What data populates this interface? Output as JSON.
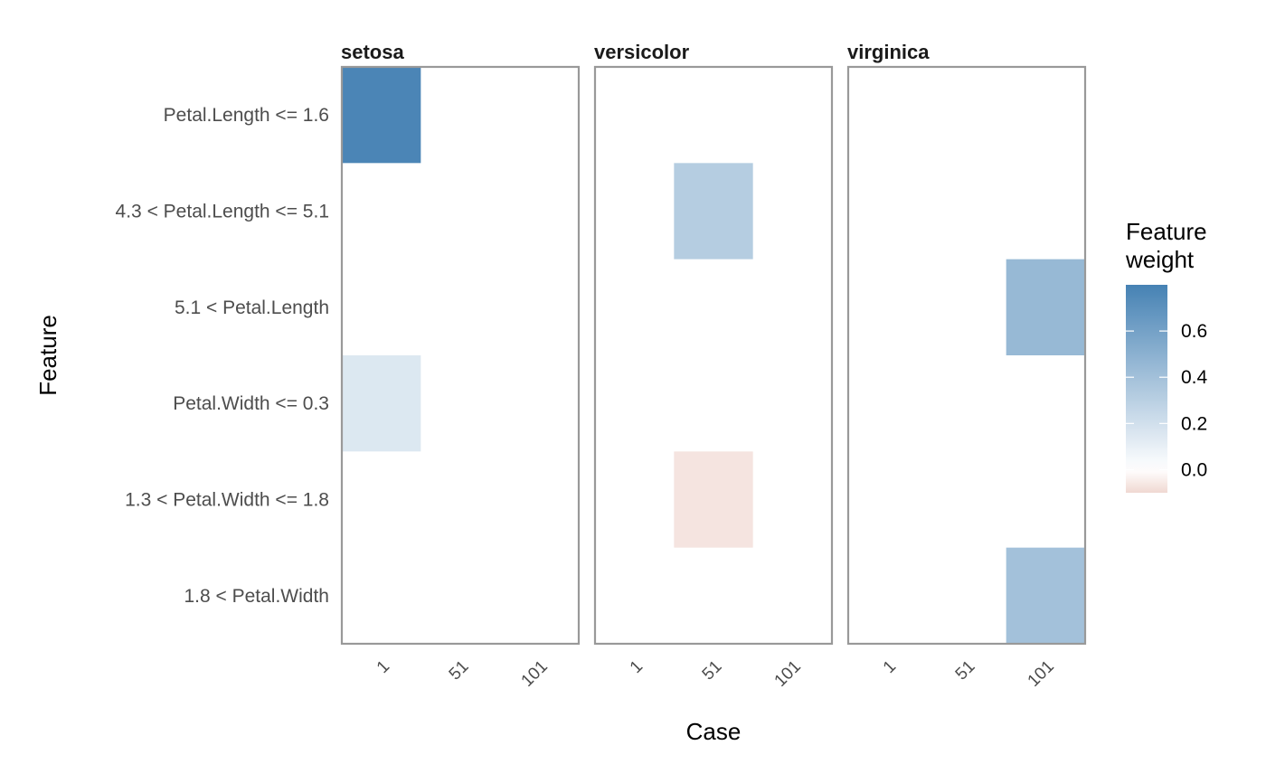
{
  "chart_data": {
    "type": "heatmap",
    "facets": [
      "setosa",
      "versicolor",
      "virginica"
    ],
    "x_categories": [
      "1",
      "51",
      "101"
    ],
    "y_categories": [
      "Petal.Length <= 1.6",
      "4.3 < Petal.Length <= 5.1",
      "5.1 < Petal.Length",
      "Petal.Width <= 0.3",
      "1.3 < Petal.Width <= 1.8",
      "1.8 < Petal.Width"
    ],
    "xlabel": "Case",
    "ylabel": "Feature",
    "legend": {
      "title_lines": [
        "Feature",
        "weight"
      ],
      "ticks": [
        0.6,
        0.4,
        0.2,
        0.0
      ],
      "tick_labels": [
        "0.6",
        "0.4",
        "0.2",
        "0.0"
      ],
      "range": [
        -0.1,
        0.8
      ],
      "low_color": "#f0d8d2",
      "mid_color": "#ffffff",
      "high_color": "#4682b4",
      "placement": "right"
    },
    "cells": [
      {
        "facet": "setosa",
        "case": "1",
        "feature": "Petal.Length <= 1.6",
        "weight": 0.78
      },
      {
        "facet": "setosa",
        "case": "1",
        "feature": "Petal.Width <= 0.3",
        "weight": 0.15
      },
      {
        "facet": "versicolor",
        "case": "51",
        "feature": "4.3 < Petal.Length <= 5.1",
        "weight": 0.32
      },
      {
        "facet": "versicolor",
        "case": "51",
        "feature": "1.3 < Petal.Width <= 1.8",
        "weight": -0.07
      },
      {
        "facet": "virginica",
        "case": "101",
        "feature": "5.1 < Petal.Length",
        "weight": 0.45
      },
      {
        "facet": "virginica",
        "case": "101",
        "feature": "1.8 < Petal.Width",
        "weight": 0.4
      }
    ]
  }
}
